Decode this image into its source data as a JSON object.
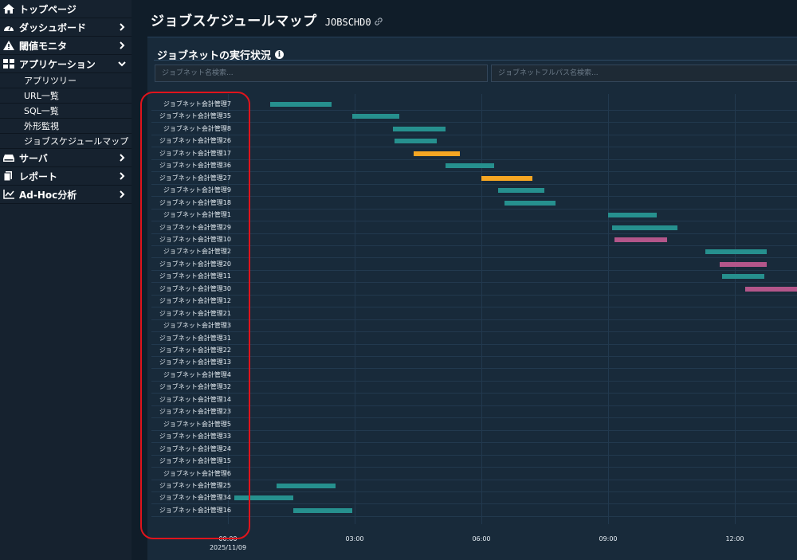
{
  "sidebar": {
    "items": [
      {
        "label": "トップページ",
        "icon": "home-icon",
        "chevron": ""
      },
      {
        "label": "ダッシュボード",
        "icon": "dashboard-icon",
        "chevron": "right"
      },
      {
        "label": "閾値モニタ",
        "icon": "warning-icon",
        "chevron": "right"
      },
      {
        "label": "アプリケーション",
        "icon": "grid-icon",
        "chevron": "down"
      }
    ],
    "subitems": [
      "アプリツリー",
      "URL一覧",
      "SQL一覧",
      "外形監視",
      "ジョブスケジュールマップ"
    ],
    "items2": [
      {
        "label": "サーバ",
        "icon": "server-icon",
        "chevron": "right"
      },
      {
        "label": "レポート",
        "icon": "report-icon",
        "chevron": "right"
      },
      {
        "label": "Ad-Hoc分析",
        "icon": "chart-icon",
        "chevron": "right"
      }
    ]
  },
  "header": {
    "title": "ジョブスケジュールマップ",
    "code": "JOBSCHD0"
  },
  "panel": {
    "title": "ジョブネットの実行状況",
    "search_name_placeholder": "ジョブネット名検索...",
    "search_path_placeholder": "ジョブネットフルパス名検索..."
  },
  "colors": {
    "normal": "#26908e",
    "warning": "#f5a623",
    "error": "#b3568a"
  },
  "chart_data": {
    "type": "gantt",
    "x_ticks": [
      "00:00",
      "03:00",
      "06:00",
      "09:00",
      "12:00"
    ],
    "x_start_hour": 0,
    "x_end_hour": 13.5,
    "date": "2025/11/09",
    "rows": [
      {
        "name": "ジョブネット会計管理7",
        "start": 1.0,
        "end": 2.45,
        "status": "normal"
      },
      {
        "name": "ジョブネット会計管理35",
        "start": 2.95,
        "end": 4.05,
        "status": "normal"
      },
      {
        "name": "ジョブネット会計管理8",
        "start": 3.9,
        "end": 5.15,
        "status": "normal"
      },
      {
        "name": "ジョブネット会計管理26",
        "start": 3.95,
        "end": 4.95,
        "status": "normal"
      },
      {
        "name": "ジョブネット会計管理17",
        "start": 4.4,
        "end": 5.5,
        "status": "warning"
      },
      {
        "name": "ジョブネット会計管理36",
        "start": 5.15,
        "end": 6.3,
        "status": "normal"
      },
      {
        "name": "ジョブネット会計管理27",
        "start": 6.0,
        "end": 7.2,
        "status": "warning"
      },
      {
        "name": "ジョブネット会計管理9",
        "start": 6.4,
        "end": 7.5,
        "status": "normal"
      },
      {
        "name": "ジョブネット会計管理18",
        "start": 6.55,
        "end": 7.75,
        "status": "normal"
      },
      {
        "name": "ジョブネット会計管理1",
        "start": 9.0,
        "end": 10.15,
        "status": "normal"
      },
      {
        "name": "ジョブネット会計管理29",
        "start": 9.1,
        "end": 10.65,
        "status": "normal"
      },
      {
        "name": "ジョブネット会計管理10",
        "start": 9.15,
        "end": 10.4,
        "status": "error"
      },
      {
        "name": "ジョブネット会計管理2",
        "start": 11.3,
        "end": 12.75,
        "status": "normal"
      },
      {
        "name": "ジョブネット会計管理20",
        "start": 11.65,
        "end": 12.75,
        "status": "error"
      },
      {
        "name": "ジョブネット会計管理11",
        "start": 11.7,
        "end": 12.7,
        "status": "normal"
      },
      {
        "name": "ジョブネット会計管理30",
        "start": 12.25,
        "end": 13.5,
        "status": "error"
      },
      {
        "name": "ジョブネット会計管理12"
      },
      {
        "name": "ジョブネット会計管理21"
      },
      {
        "name": "ジョブネット会計管理3"
      },
      {
        "name": "ジョブネット会計管理31"
      },
      {
        "name": "ジョブネット会計管理22"
      },
      {
        "name": "ジョブネット会計管理13"
      },
      {
        "name": "ジョブネット会計管理4"
      },
      {
        "name": "ジョブネット会計管理32"
      },
      {
        "name": "ジョブネット会計管理14"
      },
      {
        "name": "ジョブネット会計管理23"
      },
      {
        "name": "ジョブネット会計管理5"
      },
      {
        "name": "ジョブネット会計管理33"
      },
      {
        "name": "ジョブネット会計管理24"
      },
      {
        "name": "ジョブネット会計管理15"
      },
      {
        "name": "ジョブネット会計管理6"
      },
      {
        "name": "ジョブネット会計管理25",
        "start": 1.15,
        "end": 2.55,
        "status": "normal"
      },
      {
        "name": "ジョブネット会計管理34",
        "start": 0.15,
        "end": 1.55,
        "status": "normal"
      },
      {
        "name": "ジョブネット会計管理16",
        "start": 1.55,
        "end": 2.95,
        "status": "normal"
      }
    ]
  }
}
